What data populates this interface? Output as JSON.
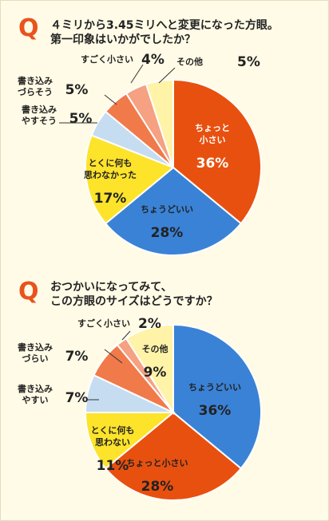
{
  "chart_data": [
    {
      "type": "pie",
      "question_mark": "Q",
      "question_lines": [
        "４ミリから3.45ミリへと変更になった方眼。",
        "第一印象はいかがでしたか？"
      ],
      "unit": "%",
      "slices": [
        {
          "label_lines": [
            "ちょっと",
            "小さい"
          ],
          "value": 36,
          "color": "#e8500f",
          "text_color": "#ffffff"
        },
        {
          "label_lines": [
            "ちょうどいい"
          ],
          "value": 28,
          "color": "#3a82d6",
          "text_color": "#222222"
        },
        {
          "label_lines": [
            "とくに何も",
            "思わなかった"
          ],
          "value": 17,
          "color": "#fde32a",
          "text_color": "#222222"
        },
        {
          "label_lines": [
            "書き込み",
            "やすそう"
          ],
          "value": 5,
          "color": "#c6dcf0",
          "text_color": "#222222"
        },
        {
          "label_lines": [
            "書き込み",
            "づらそう"
          ],
          "value": 5,
          "color": "#f07a4a",
          "text_color": "#222222"
        },
        {
          "label_lines": [
            "すごく小さい"
          ],
          "value": 4,
          "color": "#f5a182",
          "text_color": "#222222"
        },
        {
          "label_lines": [
            "その他"
          ],
          "value": 5,
          "color": "#fff3a8",
          "text_color": "#222222"
        }
      ]
    },
    {
      "type": "pie",
      "question_mark": "Q",
      "question_lines": [
        "おつかいになってみて、",
        "この方眼のサイズはどうですか？"
      ],
      "unit": "%",
      "slices": [
        {
          "label_lines": [
            "ちょうどいい"
          ],
          "value": 36,
          "color": "#3a82d6",
          "text_color": "#222222"
        },
        {
          "label_lines": [
            "ちょっと小さい"
          ],
          "value": 28,
          "color": "#e8500f",
          "text_color": "#222222"
        },
        {
          "label_lines": [
            "とくに何も",
            "思わない"
          ],
          "value": 11,
          "color": "#fde32a",
          "text_color": "#222222"
        },
        {
          "label_lines": [
            "書き込み",
            "やすい"
          ],
          "value": 7,
          "color": "#c6dcf0",
          "text_color": "#222222"
        },
        {
          "label_lines": [
            "書き込み",
            "づらい"
          ],
          "value": 7,
          "color": "#f07a4a",
          "text_color": "#222222"
        },
        {
          "label_lines": [
            "すごく小さい"
          ],
          "value": 2,
          "color": "#f5a182",
          "text_color": "#222222"
        },
        {
          "label_lines": [
            "その他"
          ],
          "value": 9,
          "color": "#fff3a8",
          "text_color": "#222222"
        }
      ]
    }
  ]
}
